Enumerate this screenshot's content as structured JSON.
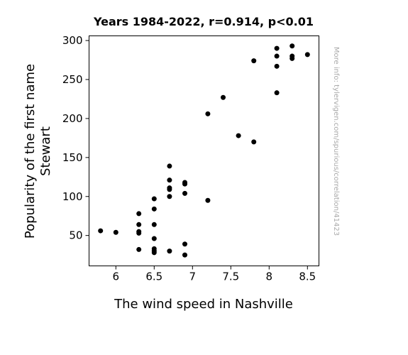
{
  "chart_data": {
    "type": "scatter",
    "title": "Years 1984-2022, r=0.914, p<0.01",
    "xlabel": "The wind speed in Nashville",
    "ylabel_lines": [
      "Popularity of the first name",
      "Stewart"
    ],
    "side_note": "More info: tylervigen.com/spurious/correlation/41423",
    "xlim": [
      5.65,
      8.65
    ],
    "ylim": [
      11,
      306
    ],
    "x_ticks": [
      6,
      6.5,
      7,
      7.5,
      8,
      8.5
    ],
    "x_tick_labels": [
      "6",
      "6.5",
      "7",
      "7.5",
      "8",
      "8.5"
    ],
    "y_ticks": [
      50,
      100,
      150,
      200,
      250,
      300
    ],
    "y_tick_labels": [
      "50",
      "100",
      "150",
      "200",
      "250",
      "300"
    ],
    "grid": false,
    "marker_color": "#000000",
    "points": [
      {
        "x": 5.8,
        "y": 56
      },
      {
        "x": 6.0,
        "y": 54
      },
      {
        "x": 6.3,
        "y": 78
      },
      {
        "x": 6.3,
        "y": 64
      },
      {
        "x": 6.3,
        "y": 55
      },
      {
        "x": 6.3,
        "y": 53
      },
      {
        "x": 6.3,
        "y": 32
      },
      {
        "x": 6.5,
        "y": 97
      },
      {
        "x": 6.5,
        "y": 84
      },
      {
        "x": 6.5,
        "y": 64
      },
      {
        "x": 6.5,
        "y": 46
      },
      {
        "x": 6.5,
        "y": 33
      },
      {
        "x": 6.5,
        "y": 30
      },
      {
        "x": 6.5,
        "y": 28
      },
      {
        "x": 6.7,
        "y": 139
      },
      {
        "x": 6.7,
        "y": 121
      },
      {
        "x": 6.7,
        "y": 111
      },
      {
        "x": 6.7,
        "y": 109
      },
      {
        "x": 6.7,
        "y": 100
      },
      {
        "x": 6.7,
        "y": 30
      },
      {
        "x": 6.9,
        "y": 118
      },
      {
        "x": 6.9,
        "y": 116
      },
      {
        "x": 6.9,
        "y": 104
      },
      {
        "x": 6.9,
        "y": 39
      },
      {
        "x": 6.9,
        "y": 25
      },
      {
        "x": 7.2,
        "y": 206
      },
      {
        "x": 7.2,
        "y": 95
      },
      {
        "x": 7.4,
        "y": 227
      },
      {
        "x": 7.6,
        "y": 178
      },
      {
        "x": 7.8,
        "y": 274
      },
      {
        "x": 7.8,
        "y": 170
      },
      {
        "x": 8.1,
        "y": 290
      },
      {
        "x": 8.1,
        "y": 280
      },
      {
        "x": 8.1,
        "y": 267
      },
      {
        "x": 8.1,
        "y": 233
      },
      {
        "x": 8.3,
        "y": 293
      },
      {
        "x": 8.3,
        "y": 280
      },
      {
        "x": 8.3,
        "y": 277
      },
      {
        "x": 8.5,
        "y": 282
      }
    ]
  }
}
